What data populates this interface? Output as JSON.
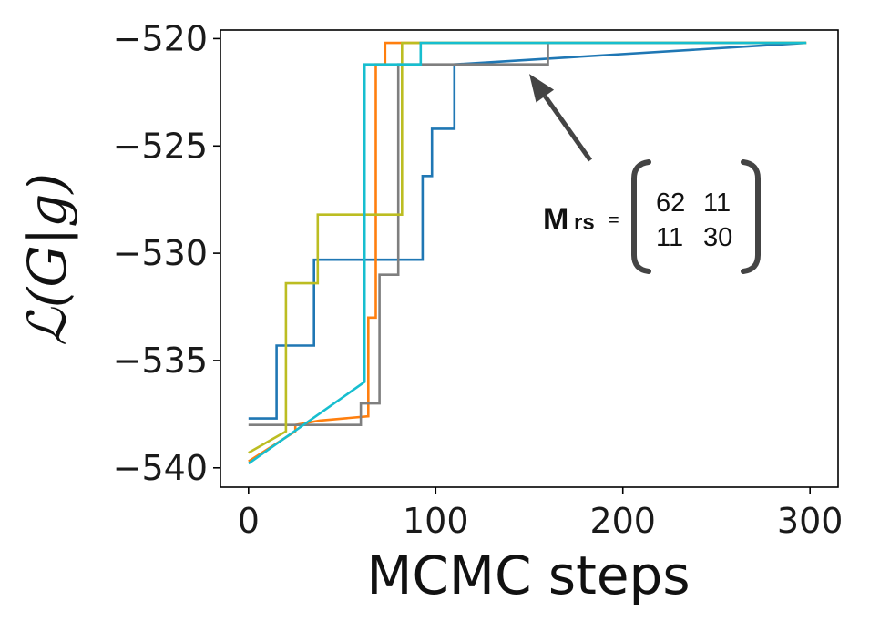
{
  "chart_data": {
    "type": "line",
    "xlabel": "MCMC steps",
    "ylabel": "ℒ(G|g)",
    "xlim": [
      -15,
      315
    ],
    "ylim": [
      -540.9,
      -519.6
    ],
    "xticks": [
      0,
      100,
      200,
      300
    ],
    "yticks": [
      -540,
      -535,
      -530,
      -525,
      -520
    ],
    "xtick_labels": [
      "0",
      "100",
      "200",
      "300"
    ],
    "ytick_labels": [
      "−540",
      "−535",
      "−530",
      "−525",
      "−520"
    ],
    "grid": false,
    "line_style": "step",
    "series": [
      {
        "color": "#1f77b4",
        "x": [
          0,
          15,
          15,
          35,
          35,
          93,
          93,
          98,
          98,
          110,
          110,
          298
        ],
        "y": [
          -537.7,
          -537.7,
          -534.3,
          -534.3,
          -530.3,
          -530.3,
          -526.4,
          -526.4,
          -524.2,
          -524.2,
          -521.2,
          -520.2
        ]
      },
      {
        "color": "#ff7f0e",
        "x": [
          0,
          25,
          25,
          38,
          38,
          64,
          64,
          68,
          68,
          73,
          73,
          298
        ],
        "y": [
          -539.7,
          -538.3,
          -538.0,
          -537.8,
          -537.8,
          -537.6,
          -533.0,
          -533.0,
          -521.2,
          -521.2,
          -520.2,
          -520.2
        ]
      },
      {
        "color": "#7f7f7f",
        "x": [
          0,
          60,
          60,
          70,
          70,
          80,
          80,
          160,
          160,
          298
        ],
        "y": [
          -538.0,
          -538.0,
          -537.0,
          -537.0,
          -531.0,
          -531.0,
          -521.2,
          -521.2,
          -520.2,
          -520.2
        ]
      },
      {
        "color": "#bcbd22",
        "x": [
          0,
          20,
          20,
          37,
          37,
          82,
          82,
          298
        ],
        "y": [
          -539.3,
          -538.3,
          -531.4,
          -531.4,
          -528.2,
          -528.2,
          -520.2,
          -520.2
        ]
      },
      {
        "color": "#17becf",
        "x": [
          0,
          62,
          62,
          92,
          92,
          298
        ],
        "y": [
          -539.8,
          -536.0,
          -521.2,
          -521.2,
          -520.2,
          -520.2
        ]
      }
    ],
    "annotation": {
      "text_m": "M",
      "text_sub": "rs",
      "text_eq": "=",
      "matrix": [
        [
          "62",
          "11"
        ],
        [
          "11",
          "30"
        ]
      ],
      "arrow_target": {
        "x": 150,
        "y": -521.3
      },
      "arrow_color": "#444444"
    }
  }
}
